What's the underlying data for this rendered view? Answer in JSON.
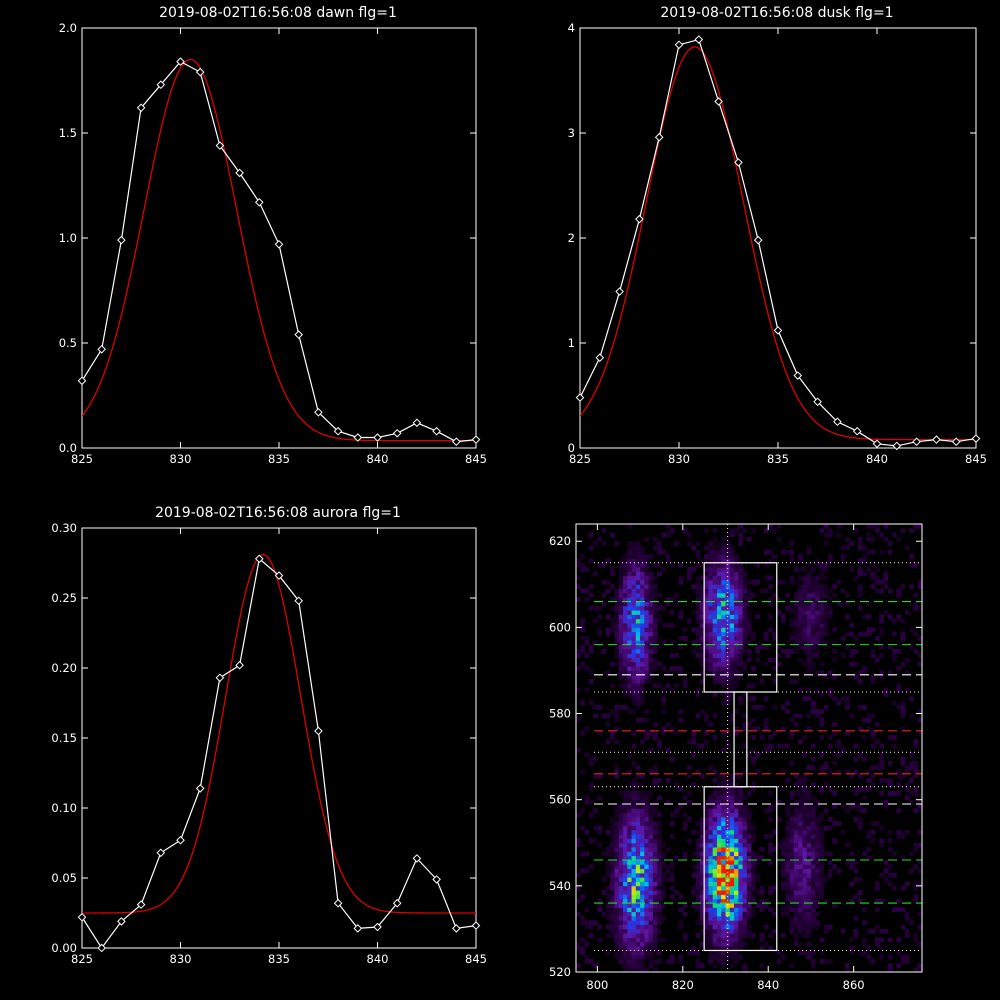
{
  "colors": {
    "background": "#000000",
    "axes": "#ffffff",
    "data": "#ffffff",
    "fit": "#dd0000",
    "green_line": "#22dd22",
    "red_line": "#ee2222",
    "white_line": "#ffffff",
    "dotted_line": "#ffffcc"
  },
  "chart_data": [
    {
      "type": "line",
      "title": "2019-08-02T16:56:08 dawn flg=1",
      "xlim": [
        825,
        845
      ],
      "ylim": [
        0,
        2.0
      ],
      "xticks": [
        "825",
        "830",
        "835",
        "840",
        "845"
      ],
      "yticks": [
        "0.0",
        "0.5",
        "1.0",
        "1.5",
        "2.0"
      ],
      "series": [
        {
          "role": "data",
          "x": [
            825,
            826,
            827,
            828,
            829,
            830,
            831,
            832,
            833,
            834,
            835,
            836,
            837,
            838,
            839,
            840,
            841,
            842,
            843,
            844,
            845
          ],
          "y": [
            0.32,
            0.47,
            0.99,
            1.62,
            1.73,
            1.84,
            1.79,
            1.44,
            1.31,
            1.17,
            0.97,
            0.54,
            0.17,
            0.08,
            0.05,
            0.05,
            0.07,
            0.12,
            0.08,
            0.03,
            0.04
          ]
        },
        {
          "role": "fit",
          "shape": "gaussian",
          "amplitude": 1.815,
          "center": 830.5,
          "sigma": 2.35,
          "baseline": 0.035
        }
      ]
    },
    {
      "type": "line",
      "title": "2019-08-02T16:56:08 dusk flg=1",
      "xlim": [
        825,
        845
      ],
      "ylim": [
        0,
        4
      ],
      "xticks": [
        "825",
        "830",
        "835",
        "840",
        "845"
      ],
      "yticks": [
        "0",
        "1",
        "2",
        "3",
        "4"
      ],
      "series": [
        {
          "role": "data",
          "x": [
            825,
            826,
            827,
            828,
            829,
            830,
            831,
            832,
            833,
            834,
            835,
            836,
            837,
            838,
            839,
            840,
            841,
            842,
            843,
            844,
            845
          ],
          "y": [
            0.48,
            0.86,
            1.49,
            2.18,
            2.96,
            3.84,
            3.89,
            3.3,
            2.72,
            1.98,
            1.12,
            0.69,
            0.44,
            0.25,
            0.16,
            0.04,
            0.02,
            0.06,
            0.08,
            0.06,
            0.09
          ]
        },
        {
          "role": "fit",
          "shape": "gaussian",
          "amplitude": 3.74,
          "center": 830.8,
          "sigma": 2.45,
          "baseline": 0.08
        }
      ]
    },
    {
      "type": "line",
      "title": "2019-08-02T16:56:08 aurora flg=1",
      "xlim": [
        825,
        845
      ],
      "ylim": [
        0,
        0.3
      ],
      "xticks": [
        "825",
        "830",
        "835",
        "840",
        "845"
      ],
      "yticks": [
        "0.00",
        "0.05",
        "0.10",
        "0.15",
        "0.20",
        "0.25",
        "0.30"
      ],
      "series": [
        {
          "role": "data",
          "x": [
            825,
            826,
            827,
            828,
            829,
            830,
            831,
            832,
            833,
            834,
            835,
            836,
            837,
            838,
            839,
            840,
            841,
            842,
            843,
            844,
            845
          ],
          "y": [
            0.022,
            0.0,
            0.019,
            0.031,
            0.068,
            0.077,
            0.114,
            0.193,
            0.202,
            0.278,
            0.266,
            0.248,
            0.155,
            0.032,
            0.014,
            0.015,
            0.032,
            0.064,
            0.049,
            0.014,
            0.016
          ]
        },
        {
          "role": "fit",
          "shape": "gaussian",
          "amplitude": 0.256,
          "center": 834.2,
          "sigma": 1.9,
          "baseline": 0.025
        }
      ]
    },
    {
      "type": "heatmap",
      "title": "",
      "xlim": [
        795,
        876
      ],
      "ylim": [
        520,
        624
      ],
      "xticks": [
        "800",
        "820",
        "840",
        "860"
      ],
      "yticks": [
        "520",
        "540",
        "560",
        "580",
        "600",
        "620"
      ],
      "blobs": [
        {
          "x": 809,
          "y": 601,
          "sx": 2.5,
          "sy": 9,
          "peak": 0.5
        },
        {
          "x": 829.5,
          "y": 603,
          "sx": 3,
          "sy": 8,
          "peak": 0.55
        },
        {
          "x": 809,
          "y": 541,
          "sx": 3,
          "sy": 10,
          "peak": 0.62
        },
        {
          "x": 830,
          "y": 543,
          "sx": 3,
          "sy": 9,
          "peak": 0.98
        },
        {
          "x": 848,
          "y": 545,
          "sx": 3,
          "sy": 10,
          "peak": 0.22
        },
        {
          "x": 850,
          "y": 603,
          "sx": 3,
          "sy": 8,
          "peak": 0.15
        }
      ],
      "boxes": [
        {
          "x": [
            825,
            842
          ],
          "y": [
            585,
            615
          ]
        },
        {
          "x": [
            825,
            842
          ],
          "y": [
            525,
            563
          ]
        }
      ],
      "connector": {
        "x": [
          832,
          835
        ],
        "y": [
          563,
          585
        ]
      },
      "hlines": [
        {
          "y": 606,
          "style": "green-dash"
        },
        {
          "y": 596,
          "style": "green-dash"
        },
        {
          "y": 589,
          "style": "white-dash"
        },
        {
          "y": 576,
          "style": "red-dash"
        },
        {
          "y": 566,
          "style": "red-dash"
        },
        {
          "y": 559,
          "style": "white-dash"
        },
        {
          "y": 546,
          "style": "green-dash"
        },
        {
          "y": 536,
          "style": "green-dash"
        },
        {
          "y": 615,
          "style": "dot"
        },
        {
          "y": 585,
          "style": "dot"
        },
        {
          "y": 571,
          "style": "dot"
        },
        {
          "y": 563,
          "style": "dot"
        },
        {
          "y": 525,
          "style": "dot"
        }
      ],
      "vline": {
        "x": 830.5,
        "style": "dot"
      }
    }
  ]
}
